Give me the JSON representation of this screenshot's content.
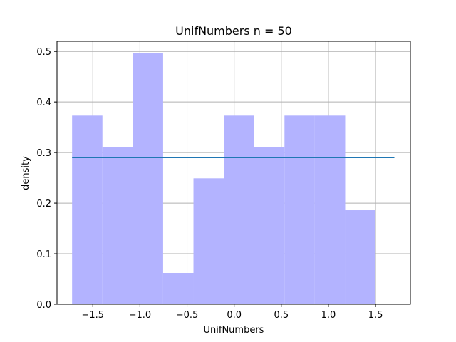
{
  "chart_data": {
    "type": "bar",
    "title": "UnifNumbers n = 50",
    "xlabel": "UnifNumbers",
    "ylabel": "density",
    "xlim": [
      -1.88,
      1.87
    ],
    "ylim": [
      0,
      0.52
    ],
    "grid": true,
    "xticks": [
      -1.5,
      -1.0,
      -0.5,
      0.0,
      0.5,
      1.0,
      1.5
    ],
    "xtick_labels": [
      "−1.5",
      "−1.0",
      "−0.5",
      "0.0",
      "0.5",
      "1.0",
      "1.5"
    ],
    "yticks": [
      0.0,
      0.1,
      0.2,
      0.3,
      0.4,
      0.5
    ],
    "ytick_labels": [
      "0.0",
      "0.1",
      "0.2",
      "0.3",
      "0.4",
      "0.5"
    ],
    "bin_edges": [
      -1.72,
      -1.398,
      -1.076,
      -0.754,
      -0.432,
      -0.11,
      0.212,
      0.534,
      0.856,
      1.178,
      1.5
    ],
    "values": [
      0.373,
      0.311,
      0.497,
      0.062,
      0.249,
      0.373,
      0.311,
      0.373,
      0.373,
      0.186
    ],
    "bar_color": "#b3b3ff",
    "density_line": {
      "x": [
        -1.72,
        1.7
      ],
      "y": [
        0.29,
        0.29
      ],
      "color": "#1f77b4"
    }
  }
}
